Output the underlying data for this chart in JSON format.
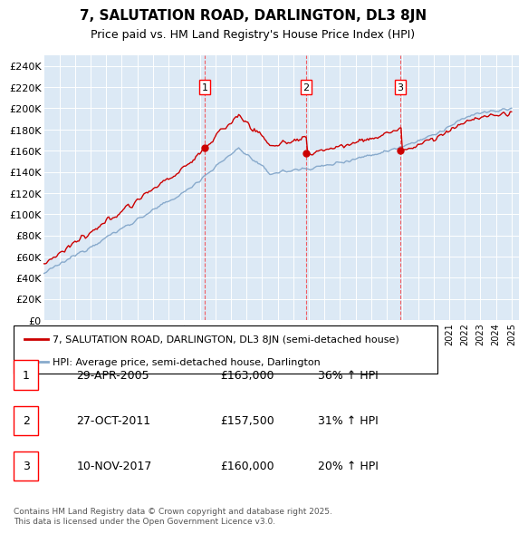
{
  "title": "7, SALUTATION ROAD, DARLINGTON, DL3 8JN",
  "subtitle": "Price paid vs. HM Land Registry's House Price Index (HPI)",
  "yticks": [
    0,
    20000,
    40000,
    60000,
    80000,
    100000,
    120000,
    140000,
    160000,
    180000,
    200000,
    220000,
    240000
  ],
  "ytick_labels": [
    "£0",
    "£20K",
    "£40K",
    "£60K",
    "£80K",
    "£100K",
    "£120K",
    "£140K",
    "£160K",
    "£180K",
    "£200K",
    "£220K",
    "£240K"
  ],
  "ylim": [
    0,
    250000
  ],
  "xlim": [
    1995,
    2025.5
  ],
  "plot_bg_color": "#dce9f5",
  "red_color": "#cc0000",
  "blue_color": "#88aacc",
  "marker1_x": 2005.33,
  "marker1_y": 163000,
  "marker2_x": 2011.83,
  "marker2_y": 157500,
  "marker3_x": 2017.87,
  "marker3_y": 160000,
  "legend_label_red": "7, SALUTATION ROAD, DARLINGTON, DL3 8JN (semi-detached house)",
  "legend_label_blue": "HPI: Average price, semi-detached house, Darlington",
  "table_rows": [
    [
      "1",
      "29-APR-2005",
      "£163,000",
      "36% ↑ HPI"
    ],
    [
      "2",
      "27-OCT-2011",
      "£157,500",
      "31% ↑ HPI"
    ],
    [
      "3",
      "10-NOV-2017",
      "£160,000",
      "20% ↑ HPI"
    ]
  ],
  "footer": "Contains HM Land Registry data © Crown copyright and database right 2025.\nThis data is licensed under the Open Government Licence v3.0."
}
